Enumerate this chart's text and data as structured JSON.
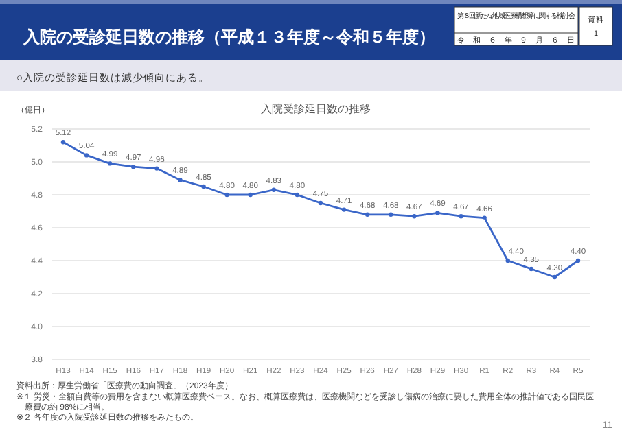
{
  "chart_data": {
    "type": "line",
    "title": "入院の受診延日数の推移（平成１３年度～令和５年度）",
    "subtitle": "入院受診延日数の推移",
    "ylabel": "（億日）",
    "annotations": [
      "第８回新たな地域医療構想等に関する検討会",
      "令和６年９月６日",
      "資料",
      "1",
      "○入院の受診延日数は減少傾向にある。",
      "資料出所：厚生労働省「医療費の動向調査」（2023年度）",
      "※１ 労災・全額自費等の費用を含まない概算医療費ベース。なお、概算医療費は、医療機関などを受診し傷病の治療に要した費用全体の推計値である国民医療費の約 98%に相当。",
      "※２ 各年度の入院受診延日数の推移をみたもの。",
      "11"
    ],
    "categories": [
      "H13",
      "H14",
      "H15",
      "H16",
      "H17",
      "H18",
      "H19",
      "H20",
      "H21",
      "H22",
      "H23",
      "H24",
      "H25",
      "H26",
      "H27",
      "H28",
      "H29",
      "H30",
      "R1",
      "R2",
      "R3",
      "R4",
      "R5"
    ],
    "series": [
      {
        "color": "#3a66c8",
        "values": [
          5.12,
          5.04,
          4.99,
          4.97,
          4.96,
          4.89,
          4.85,
          4.8,
          4.8,
          4.83,
          4.8,
          4.75,
          4.71,
          4.68,
          4.68,
          4.67,
          4.69,
          4.67,
          4.66,
          4.4,
          4.35,
          4.3,
          4.4
        ]
      }
    ],
    "value_labels": [
      "5.12",
      "5.04",
      "4.99",
      "4.97",
      "4.96",
      "4.89",
      "4.85",
      "4.80",
      "4.80",
      "4.83",
      "4.80",
      "4.75",
      "4.71",
      "4.68",
      "4.68",
      "4.67",
      "4.69",
      "4.67",
      "4.66",
      "4.40",
      "4.35",
      "4.30",
      "4.40"
    ],
    "ylim": [
      3.8,
      5.2
    ],
    "yticks": [
      3.8,
      {
        "value": 4,
        "label": "4.0"
      },
      4.2,
      4.4,
      4.6,
      4.8,
      {
        "value": 5,
        "label": "5.0"
      },
      5.2
    ],
    "grid": "y",
    "marker": "circle",
    "line_style": "solid"
  }
}
